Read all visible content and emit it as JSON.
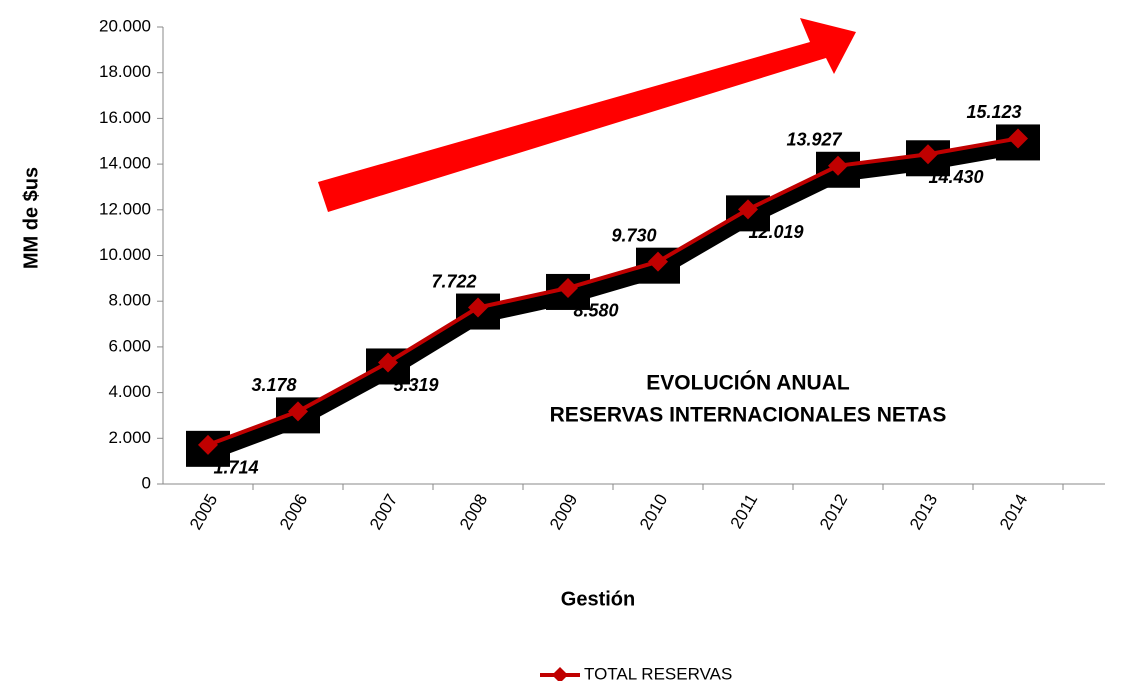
{
  "chart_data": {
    "type": "line",
    "annotation": [
      "EVOLUCIÓN ANUAL",
      "RESERVAS INTERNACIONALES NETAS"
    ],
    "x_label": "Gestión",
    "y_label": "MM de $us",
    "categories": [
      "2005",
      "2006",
      "2007",
      "2008",
      "2009",
      "2010",
      "2011",
      "2012",
      "2013",
      "2014"
    ],
    "series": [
      {
        "name": "TOTAL RESERVAS",
        "color": "#c00000",
        "values": [
          1714,
          3178,
          5319,
          7722,
          8580,
          9730,
          12019,
          13927,
          14430,
          15123
        ],
        "value_labels": [
          "1.714",
          "3.178",
          "5.319",
          "7.722",
          "8.580",
          "9.730",
          "12.019",
          "13.927",
          "14.430",
          "15.123"
        ]
      }
    ],
    "ylim": [
      0,
      20000
    ],
    "yticks": [
      0,
      {
        "value": 2000,
        "label": "2.000"
      },
      {
        "value": 4000,
        "label": "4.000"
      },
      {
        "value": 6000,
        "label": "6.000"
      },
      {
        "value": 8000,
        "label": "8.000"
      },
      {
        "value": 10000,
        "label": "10.000"
      },
      {
        "value": 12000,
        "label": "12.000"
      },
      {
        "value": 14000,
        "label": "14.000"
      },
      {
        "value": 16000,
        "label": "16.000"
      },
      {
        "value": 18000,
        "label": "18.000"
      },
      {
        "value": 20000,
        "label": "20.000"
      }
    ],
    "legend": "bottom"
  }
}
